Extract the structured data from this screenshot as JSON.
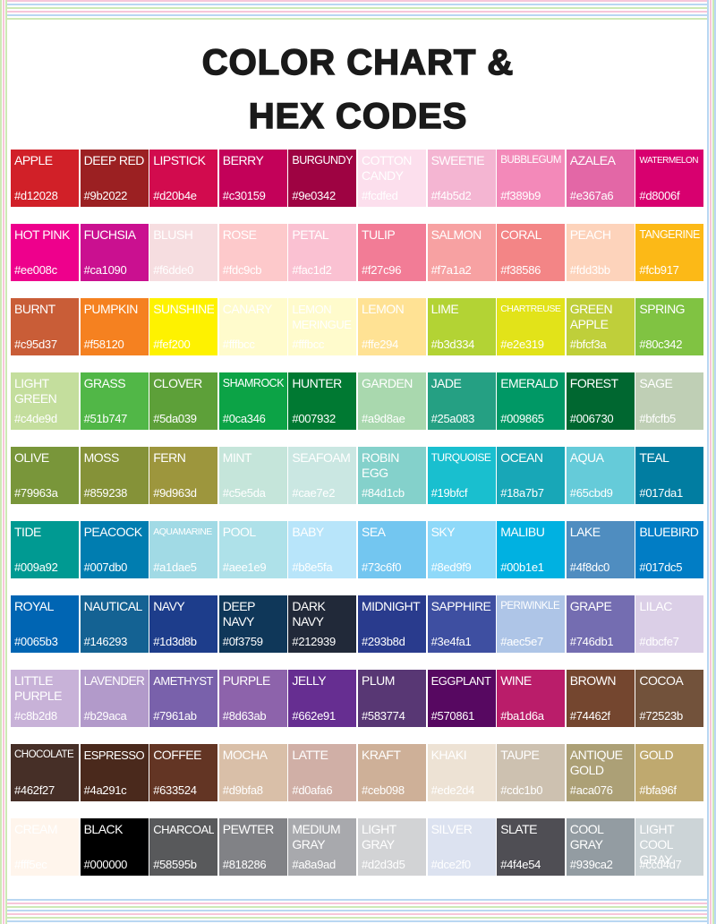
{
  "header": {
    "title_line1": "COLOR CHART &",
    "title_line2": "HEX CODES"
  },
  "rows": [
    [
      {
        "name": "APPLE",
        "hex": "#d12028"
      },
      {
        "name": "DEEP RED",
        "hex": "#9b2022"
      },
      {
        "name": "LIPSTICK",
        "hex": "#d20b4e"
      },
      {
        "name": "BERRY",
        "hex": "#c30159"
      },
      {
        "name": "BURGUNDY",
        "hex": "#9e0342"
      },
      {
        "name": "COTTON CANDY",
        "hex": "#fcdfed"
      },
      {
        "name": "SWEETIE",
        "hex": "#f4b5d2"
      },
      {
        "name": "BUBBLEGUM",
        "hex": "#f389b9"
      },
      {
        "name": "AZALEA",
        "hex": "#e367a6"
      },
      {
        "name": "WATERMELON",
        "hex": "#d8006f"
      }
    ],
    [
      {
        "name": "HOT PINK",
        "hex": "#ee008c"
      },
      {
        "name": "FUCHSIA",
        "hex": "#ca1090"
      },
      {
        "name": "BLUSH",
        "hex": "#f6dde0"
      },
      {
        "name": "ROSE",
        "hex": "#fdc9cb"
      },
      {
        "name": "PETAL",
        "hex": "#fac1d2"
      },
      {
        "name": "TULIP",
        "hex": "#f27c96"
      },
      {
        "name": "SALMON",
        "hex": "#f7a1a2"
      },
      {
        "name": "CORAL",
        "hex": "#f38586"
      },
      {
        "name": "PEACH",
        "hex": "#fdd3bb"
      },
      {
        "name": "TANGERINE",
        "hex": "#fcb917"
      }
    ],
    [
      {
        "name": "BURNT",
        "hex": "#c95d37"
      },
      {
        "name": "PUMPKIN",
        "hex": "#f58120"
      },
      {
        "name": "SUNSHINE",
        "hex": "#fef200"
      },
      {
        "name": "CANARY",
        "hex": "#fffbcc"
      },
      {
        "name": "LEMON MERINGUE",
        "hex": "#fffbcc"
      },
      {
        "name": "LEMON",
        "hex": "#ffe294"
      },
      {
        "name": "LIME",
        "hex": "#b3d334"
      },
      {
        "name": "CHARTREUSE",
        "hex": "#e2e319"
      },
      {
        "name": "GREEN APPLE",
        "hex": "#bfcf3a"
      },
      {
        "name": "SPRING",
        "hex": "#80c342"
      }
    ],
    [
      {
        "name": "LIGHT GREEN",
        "hex": "#c4de9d"
      },
      {
        "name": "GRASS",
        "hex": "#51b747"
      },
      {
        "name": "CLOVER",
        "hex": "#5da039"
      },
      {
        "name": "SHAMROCK",
        "hex": "#0ca346"
      },
      {
        "name": "HUNTER",
        "hex": "#007932"
      },
      {
        "name": "GARDEN",
        "hex": "#a9d8ae"
      },
      {
        "name": "JADE",
        "hex": "#25a083"
      },
      {
        "name": "EMERALD",
        "hex": "#009865"
      },
      {
        "name": "FOREST",
        "hex": "#006730"
      },
      {
        "name": "SAGE",
        "hex": "#bfcfb5"
      }
    ],
    [
      {
        "name": "OLIVE",
        "hex": "#79963a"
      },
      {
        "name": "MOSS",
        "hex": "#859238"
      },
      {
        "name": "FERN",
        "hex": "#9d963d"
      },
      {
        "name": "MINT",
        "hex": "#c5e5da"
      },
      {
        "name": "SEAFOAM",
        "hex": "#cae7e2"
      },
      {
        "name": "ROBIN EGG",
        "hex": "#84d1cb"
      },
      {
        "name": "TURQUOISE",
        "hex": "#19bfcf"
      },
      {
        "name": "OCEAN",
        "hex": "#18a7b7"
      },
      {
        "name": "AQUA",
        "hex": "#65cbd9"
      },
      {
        "name": "TEAL",
        "hex": "#017da1"
      }
    ],
    [
      {
        "name": "TIDE",
        "hex": "#009a92"
      },
      {
        "name": "PEACOCK",
        "hex": "#007db0"
      },
      {
        "name": "AQUAMARINE",
        "hex": "#a1dae5"
      },
      {
        "name": "POOL",
        "hex": "#aee1e9"
      },
      {
        "name": "BABY",
        "hex": "#b8e5fa"
      },
      {
        "name": "SEA",
        "hex": "#73c6f0"
      },
      {
        "name": "SKY",
        "hex": "#8ed9f9"
      },
      {
        "name": "MALIBU",
        "hex": "#00b1e1"
      },
      {
        "name": "LAKE",
        "hex": "#4f8dc0"
      },
      {
        "name": "BLUEBIRD",
        "hex": "#017dc5"
      }
    ],
    [
      {
        "name": "ROYAL",
        "hex": "#0065b3"
      },
      {
        "name": "NAUTICAL",
        "hex": "#146293"
      },
      {
        "name": "NAVY",
        "hex": "#1d3d8b"
      },
      {
        "name": "DEEP NAVY",
        "hex": "#0f3759"
      },
      {
        "name": "DARK NAVY",
        "hex": "#212939"
      },
      {
        "name": "MIDNIGHT",
        "hex": "#293b8d"
      },
      {
        "name": "SAPPHIRE",
        "hex": "#3e4fa1"
      },
      {
        "name": "PERIWINKLE",
        "hex": "#aec5e7"
      },
      {
        "name": "GRAPE",
        "hex": "#746db1"
      },
      {
        "name": "LILAC",
        "hex": "#dbcfe7"
      }
    ],
    [
      {
        "name": "LITTLE PURPLE",
        "hex": "#c8b2d8"
      },
      {
        "name": "LAVENDER",
        "hex": "#b29aca"
      },
      {
        "name": "AMETHYST",
        "hex": "#7961ab"
      },
      {
        "name": "PURPLE",
        "hex": "#8d63ab"
      },
      {
        "name": "JELLY",
        "hex": "#662e91"
      },
      {
        "name": "PLUM",
        "hex": "#583774"
      },
      {
        "name": "EGGPLANT",
        "hex": "#570861"
      },
      {
        "name": "WINE",
        "hex": "#ba1d6a"
      },
      {
        "name": "BROWN",
        "hex": "#74462f"
      },
      {
        "name": "COCOA",
        "hex": "#72523b"
      }
    ],
    [
      {
        "name": "CHOCOLATE",
        "hex": "#462f27"
      },
      {
        "name": "ESPRESSO",
        "hex": "#4a291c"
      },
      {
        "name": "COFFEE",
        "hex": "#633524"
      },
      {
        "name": "MOCHA",
        "hex": "#d9bfa8"
      },
      {
        "name": "LATTE",
        "hex": "#d0afa6"
      },
      {
        "name": "KRAFT",
        "hex": "#ceb098"
      },
      {
        "name": "KHAKI",
        "hex": "#ede2d4"
      },
      {
        "name": "TAUPE",
        "hex": "#cdc1b0"
      },
      {
        "name": "ANTIQUE GOLD",
        "hex": "#aca076"
      },
      {
        "name": "GOLD",
        "hex": "#bfa96f"
      }
    ],
    [
      {
        "name": "CREAM",
        "hex": "#fff5ec"
      },
      {
        "name": "BLACK",
        "hex": "#000000"
      },
      {
        "name": "CHARCOAL",
        "hex": "#58595b"
      },
      {
        "name": "PEWTER",
        "hex": "#818286"
      },
      {
        "name": "MEDIUM GRAY",
        "hex": "#a8a9ad"
      },
      {
        "name": "LIGHT GRAY",
        "hex": "#d2d3d5"
      },
      {
        "name": "SILVER",
        "hex": "#dce2f0"
      },
      {
        "name": "SLATE",
        "hex": "#4f4e54"
      },
      {
        "name": "COOL GRAY",
        "hex": "#939ca2"
      },
      {
        "name": "LIGHT COOL GRAY",
        "hex": "#ccd4d7"
      }
    ]
  ]
}
